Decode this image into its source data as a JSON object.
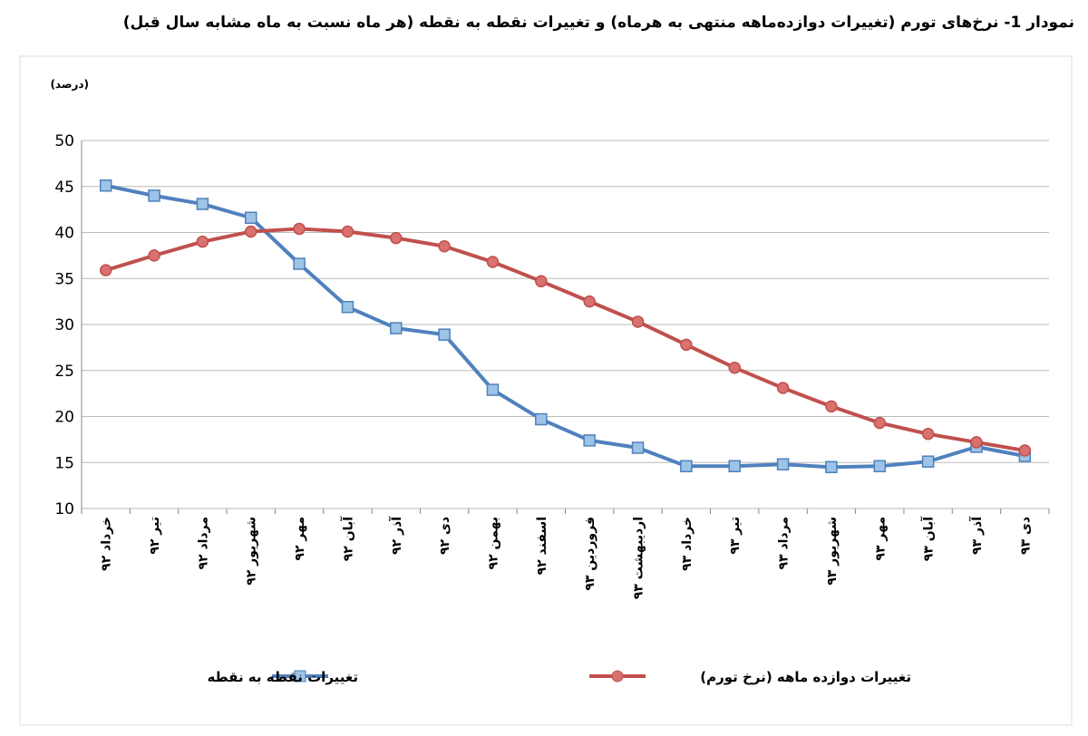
{
  "chart_data": {
    "type": "line",
    "title": "نمودار 1- نرخ‌های تورم (تغییرات دوازده‌ماهه منتهی به هرماه) و تغییرات نقطه به نقطه (هر ماه نسبت به ماه مشابه سال قبل)",
    "y_label": "(درصد)",
    "categories": [
      "خرداد ۹۲",
      "تیر ۹۲",
      "مرداد ۹۲",
      "شهریور ۹۲",
      "مهر ۹۲",
      "آبان ۹۲",
      "آذر ۹۲",
      "دی ۹۲",
      "بهمن ۹۲",
      "اسفند ۹۲",
      "فروردین ۹۳",
      "اردیبهشت ۹۳",
      "خرداد ۹۳",
      "تیر ۹۳",
      "مرداد ۹۳",
      "شهریور ۹۳",
      "مهر ۹۳",
      "آبان ۹۳",
      "آذر ۹۳",
      "دی ۹۳"
    ],
    "series": [
      {
        "name": "تغییرات نقطه به نقطه",
        "color": "#4f81bd",
        "marker": "square",
        "values": [
          45.1,
          44.0,
          43.1,
          41.6,
          36.6,
          31.9,
          29.6,
          28.9,
          22.9,
          19.7,
          17.4,
          16.6,
          14.6,
          14.6,
          14.8,
          14.5,
          14.6,
          15.1,
          16.7,
          15.7
        ]
      },
      {
        "name": "تغییرات دوازده ماهه (نرخ تورم)",
        "color": "#c0504d",
        "marker": "circle",
        "values": [
          35.9,
          37.5,
          39.0,
          40.1,
          40.4,
          40.1,
          39.4,
          38.5,
          36.8,
          34.7,
          32.5,
          30.3,
          27.8,
          25.3,
          23.1,
          21.1,
          19.3,
          18.1,
          17.2,
          16.3
        ]
      }
    ],
    "ylim": [
      10,
      50
    ],
    "yticks": [
      10,
      15,
      20,
      25,
      30,
      35,
      40,
      45,
      50
    ],
    "grid": true
  }
}
